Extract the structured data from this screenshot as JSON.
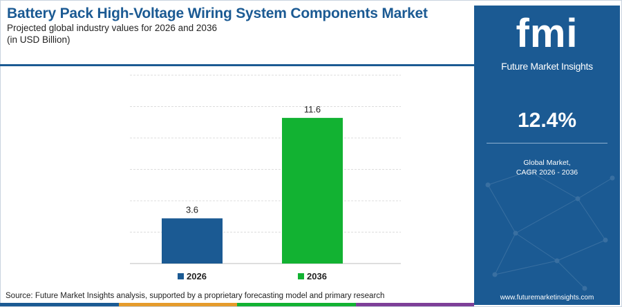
{
  "header": {
    "title": "Battery Pack High-Voltage Wiring System Components Market",
    "subtitle": "Projected global industry values for 2026 and 2036",
    "unit_note": "(in USD Billion)"
  },
  "chart_data": {
    "type": "bar",
    "categories": [
      "2026",
      "2036"
    ],
    "values": [
      3.6,
      11.6
    ],
    "value_labels": [
      "3.6",
      "11.6"
    ],
    "colors": [
      "#1b5a93",
      "#12b232"
    ],
    "ylim": [
      0,
      15
    ],
    "gridlines": [
      0,
      2.5,
      5,
      7.5,
      10,
      12.5,
      15
    ],
    "grid": true,
    "xlabel": "",
    "ylabel": "",
    "legend": {
      "placement": "bottom",
      "entries": [
        {
          "label": "2026",
          "color": "#1b5a93"
        },
        {
          "label": "2036",
          "color": "#12b232"
        }
      ]
    }
  },
  "source": "Source: Future Market Insights analysis, supported by a proprietary forecasting model and primary research",
  "footer_colors": [
    "#1b5a93",
    "#e59b2b",
    "#12b232",
    "#7d3f98"
  ],
  "panel": {
    "brand_mark": "fmi",
    "brand_name": "Future Market Insights",
    "cagr_value": "12.4%",
    "cagr_label_line1": "Global Market,",
    "cagr_label_line2": "CAGR 2026 - 2036",
    "website": "www.futuremarketinsights.com",
    "background": "#1b5a93"
  }
}
